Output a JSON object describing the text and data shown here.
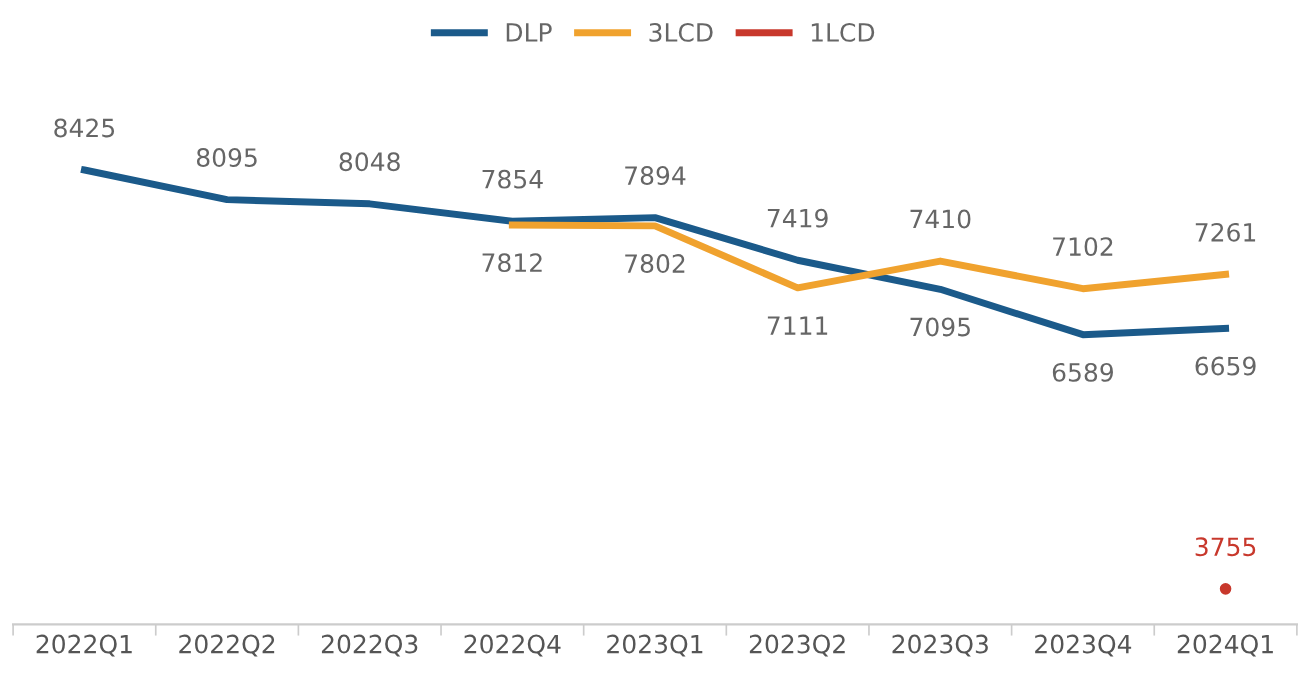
{
  "chart_data": {
    "type": "line",
    "categories": [
      "2022Q1",
      "2022Q2",
      "2022Q3",
      "2022Q4",
      "2023Q1",
      "2023Q2",
      "2023Q3",
      "2023Q4",
      "2024Q1"
    ],
    "series": [
      {
        "name": "DLP",
        "color": "#1b5a8a",
        "values": [
          8425,
          8095,
          8048,
          7854,
          7894,
          7419,
          7095,
          6589,
          6659
        ]
      },
      {
        "name": "3LCD",
        "color": "#f0a22e",
        "values": [
          null,
          null,
          null,
          7812,
          7802,
          7111,
          7410,
          7102,
          7261
        ]
      },
      {
        "name": "1LCD",
        "color": "#c8382c",
        "type": "scatter",
        "marker": "circle",
        "values": [
          null,
          null,
          null,
          null,
          null,
          null,
          null,
          null,
          3755
        ]
      }
    ],
    "data_labels": true,
    "legend": "top",
    "grid": false,
    "marker": "none",
    "line_style": "solid"
  }
}
